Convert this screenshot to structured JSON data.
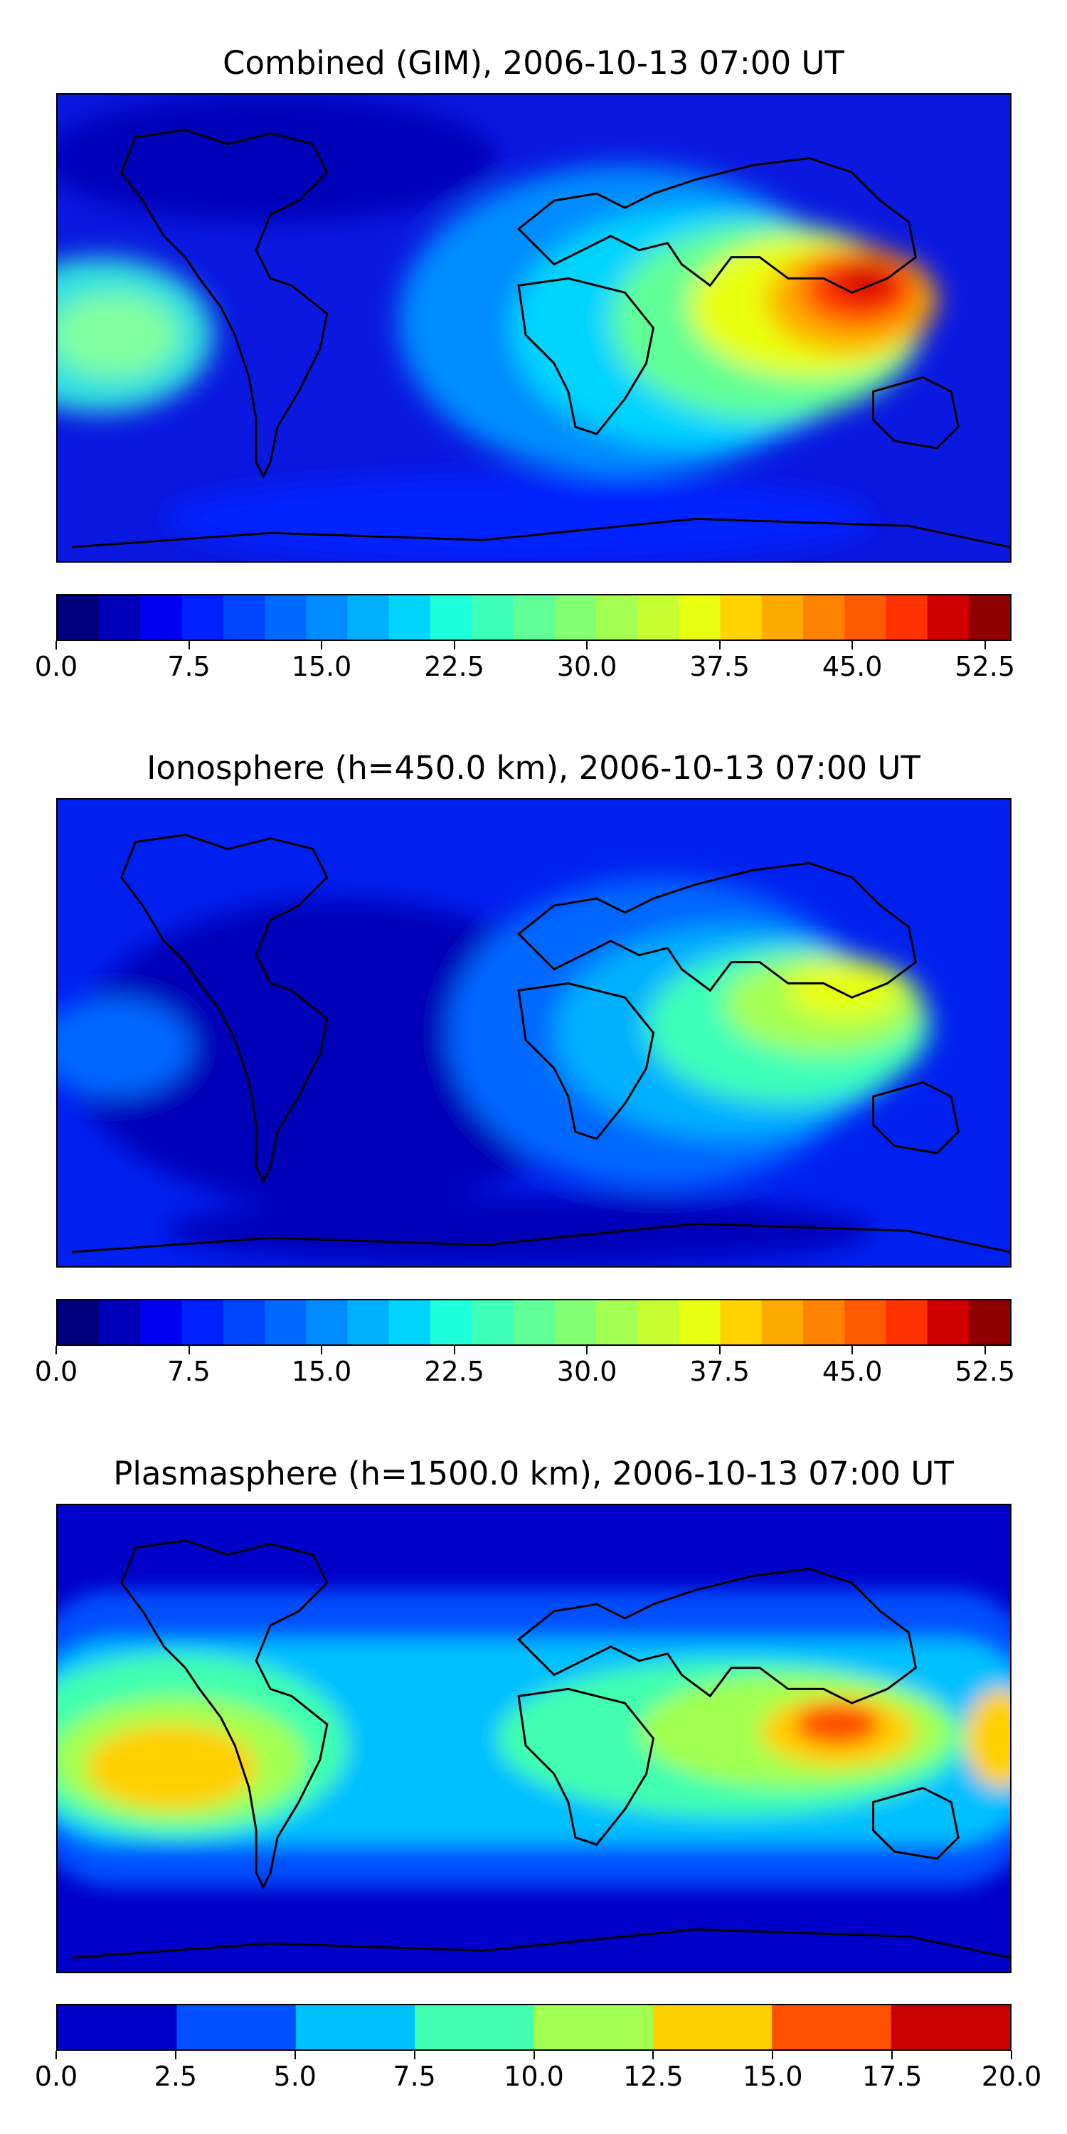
{
  "panels": [
    {
      "id": "combined",
      "title": "Combined (GIM), 2006-10-13 07:00 UT",
      "colorbar": {
        "min": 0,
        "max": 54.0,
        "levels": 22,
        "colors": [
          "#00007f",
          "#0000b8",
          "#0000f0",
          "#0020ff",
          "#0044ff",
          "#0068ff",
          "#008cff",
          "#00b0ff",
          "#00d4ff",
          "#1cffdb",
          "#3effb9",
          "#60ff97",
          "#82ff75",
          "#a4ff53",
          "#c6ff31",
          "#e8ff0f",
          "#ffd200",
          "#ffaa00",
          "#ff8200",
          "#ff5a00",
          "#ff3200",
          "#d00000",
          "#8f0000"
        ],
        "ticks": [
          "0.0",
          "7.5",
          "15.0",
          "22.5",
          "30.0",
          "37.5",
          "45.0",
          "52.5"
        ],
        "tick_values": [
          0,
          7.5,
          15,
          22.5,
          30,
          37.5,
          45,
          52.5
        ]
      }
    },
    {
      "id": "ionosphere",
      "title": "Ionosphere  (h=450.0 km), 2006-10-13 07:00 UT",
      "colorbar": {
        "min": 0,
        "max": 54.0,
        "levels": 22,
        "colors": [
          "#00007f",
          "#0000b8",
          "#0000f0",
          "#0020ff",
          "#0044ff",
          "#0068ff",
          "#008cff",
          "#00b0ff",
          "#00d4ff",
          "#1cffdb",
          "#3effb9",
          "#60ff97",
          "#82ff75",
          "#a4ff53",
          "#c6ff31",
          "#e8ff0f",
          "#ffd200",
          "#ffaa00",
          "#ff8200",
          "#ff5a00",
          "#ff3200",
          "#d00000",
          "#8f0000"
        ],
        "ticks": [
          "0.0",
          "7.5",
          "15.0",
          "22.5",
          "30.0",
          "37.5",
          "45.0",
          "52.5"
        ],
        "tick_values": [
          0,
          7.5,
          15,
          22.5,
          30,
          37.5,
          45,
          52.5
        ]
      }
    },
    {
      "id": "plasmasphere",
      "title": "Plasmasphere (h=1500.0 km), 2006-10-13 07:00 UT",
      "colorbar": {
        "min": 0,
        "max": 20.0,
        "levels": 8,
        "colors": [
          "#0000c8",
          "#0050ff",
          "#00c0ff",
          "#40ffb0",
          "#a0ff50",
          "#ffd000",
          "#ff5000",
          "#c80000"
        ],
        "ticks": [
          "0.0",
          "2.5",
          "5.0",
          "7.5",
          "10.0",
          "12.5",
          "15.0",
          "17.5",
          "20.0"
        ],
        "tick_values": [
          0,
          2.5,
          5,
          7.5,
          10,
          12.5,
          15,
          17.5,
          20
        ]
      }
    }
  ],
  "map": {
    "projection": "plate-carree",
    "coastlines": true,
    "palette": "jet"
  }
}
